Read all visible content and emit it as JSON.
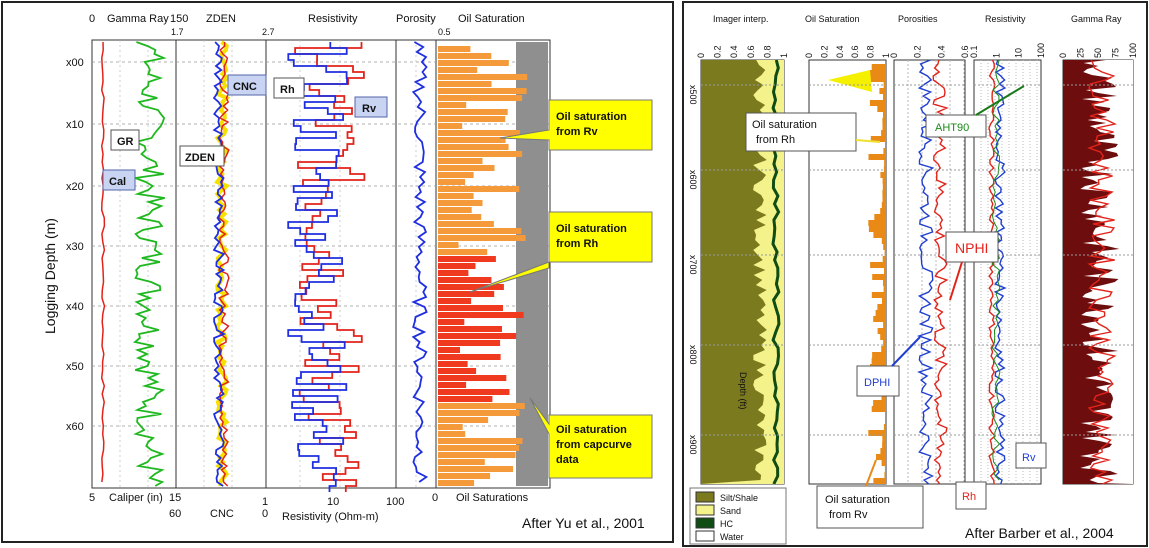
{
  "left_panel": {
    "header": {
      "gr_min": "0",
      "gr_title": "Gamma Ray",
      "gr_max": "150",
      "zden_min": "1.7",
      "zden_title": "ZDEN",
      "zden_max": "2.7",
      "res_title": "Resistivity",
      "por_title": "Porosity",
      "por_max": "0.5",
      "oil_title": "Oil Saturation"
    },
    "footer": {
      "cal_min": "5",
      "cal_title": "Caliper (in)",
      "cal_max": "15",
      "cnc_min": "60",
      "cnc_title": "CNC",
      "cnc_max": "0",
      "res_min": "1",
      "res_mid": "10",
      "res_max": "100",
      "res_title": "Resistivity (Ohm-m)",
      "por_right": "0",
      "oil_title": "Oil Saturations"
    },
    "y_axis_title": "Logging Depth (m)",
    "depth_ticks": [
      "x00",
      "x10",
      "x20",
      "x30",
      "x40",
      "x50",
      "x60"
    ],
    "curve_labels": {
      "gr": "GR",
      "cal": "Cal",
      "zden": "ZDEN",
      "cnc": "CNC",
      "rh": "Rh",
      "rv": "Rv"
    },
    "callouts": [
      "Oil saturation\nfrom Rv",
      "Oil saturation\nfrom Rh",
      "Oil saturation\nfrom capcurve\ndata"
    ],
    "credit": "After Yu et al., 2001"
  },
  "right_panel": {
    "tracks": [
      {
        "title": "Imager interp."
      },
      {
        "title": "Oil Saturation"
      },
      {
        "title": "Porosities"
      },
      {
        "title": "Resistivity"
      },
      {
        "title": "Gamma Ray"
      }
    ],
    "imager_ticks": [
      "0",
      "0.2",
      "0.4",
      "0.6",
      "0.8",
      "1"
    ],
    "oil_ticks": [
      "0",
      "0.2",
      "0.4",
      "0.6",
      "0.8",
      "1"
    ],
    "por_ticks": [
      "0",
      "0.2",
      "0.4",
      "0.6"
    ],
    "res_ticks": [
      "0.1",
      "1",
      "10",
      "100"
    ],
    "gr_ticks": [
      "0",
      "25",
      "50",
      "75",
      "100"
    ],
    "depth_ticks": [
      "x500",
      "x600",
      "x700",
      "x800",
      "x900"
    ],
    "depth_title": "Depth (ft)",
    "legend": [
      "Silt/Shale",
      "Sand",
      "HC",
      "Water"
    ],
    "legend_colors": [
      "#7b7a1e",
      "#f4f28a",
      "#0f4d14",
      "#ffffff"
    ],
    "callouts": {
      "oil_rh": "Oil saturation\nfrom Rh",
      "oil_rv": "Oil saturation\nfrom Rv",
      "ant90": "AHT90",
      "nphi": "NPHI",
      "dphi": "DPHI",
      "rv": "Rv",
      "rh": "Rh"
    },
    "credit": "After Barber et al., 2004"
  },
  "chart_data": [
    {
      "type": "line",
      "title": "",
      "y_label": "Logging Depth (m)",
      "depth_ticks": [
        "x00",
        "x10",
        "x20",
        "x30",
        "x40",
        "x50",
        "x60"
      ],
      "tracks": [
        {
          "name": "Gamma Ray / Caliper",
          "range_gr": [
            0,
            150
          ],
          "range_caliper": [
            5,
            15
          ],
          "series": [
            "GR",
            "Cal"
          ]
        },
        {
          "name": "ZDEN / CNC",
          "range_zden": [
            1.7,
            2.7
          ],
          "range_cnc": [
            60,
            0
          ],
          "series": [
            "ZDEN",
            "CNC"
          ]
        },
        {
          "name": "Resistivity",
          "range": [
            1,
            100
          ],
          "scale": "log",
          "series": [
            "Rh",
            "Rv"
          ]
        },
        {
          "name": "Porosity",
          "range": [
            0,
            0.5
          ]
        },
        {
          "name": "Oil Saturation",
          "series": [
            "Oil saturation from Rv",
            "Oil saturation from Rh",
            "Oil saturation from capcurve data"
          ]
        }
      ],
      "grid": true
    },
    {
      "type": "line",
      "title": "",
      "y_label": "Depth (ft)",
      "depth_ticks": [
        "x500",
        "x600",
        "x700",
        "x800",
        "x900"
      ],
      "tracks": [
        {
          "name": "Imager interp.",
          "range": [
            0,
            1
          ],
          "legend": [
            "Silt/Shale",
            "Sand",
            "HC",
            "Water"
          ]
        },
        {
          "name": "Oil Saturation",
          "range": [
            0,
            1
          ],
          "series": [
            "Oil saturation from Rh",
            "Oil saturation from Rv"
          ]
        },
        {
          "name": "Porosities",
          "range": [
            0,
            0.6
          ],
          "series": [
            "NPHI",
            "DPHI"
          ]
        },
        {
          "name": "Resistivity",
          "range": [
            0.1,
            100
          ],
          "scale": "log",
          "series": [
            "AHT90",
            "Rv",
            "Rh"
          ]
        },
        {
          "name": "Gamma Ray",
          "range": [
            0,
            100
          ]
        }
      ],
      "grid": true
    }
  ]
}
